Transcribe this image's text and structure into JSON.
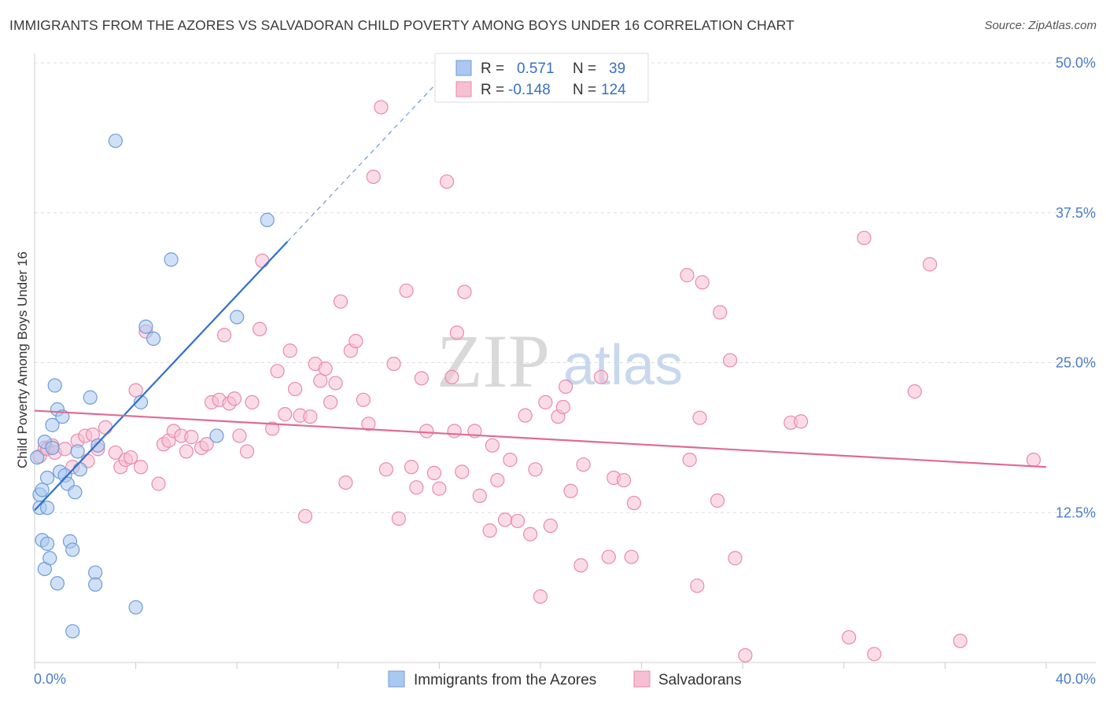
{
  "title": "IMMIGRANTS FROM THE AZORES VS SALVADORAN CHILD POVERTY AMONG BOYS UNDER 16 CORRELATION CHART",
  "source": "Source: ZipAtlas.com",
  "watermark": {
    "zip": "ZIP",
    "atlas": "atlas"
  },
  "colors": {
    "blue_fill": "#aac8f0",
    "blue_stroke": "#6f9bd8",
    "blue_line": "#2f6fd0",
    "pink_fill": "#f7bfd2",
    "pink_stroke": "#e88aab",
    "pink_line": "#e06a94",
    "grid": "#dddddd",
    "tick_text": "#4a7cc9"
  },
  "legend": {
    "rows": [
      {
        "r_label": "R =",
        "r_value": "0.571",
        "n_label": "N =",
        "n_value": "39"
      },
      {
        "r_label": "R =",
        "r_value": "-0.148",
        "n_label": "N =",
        "n_value": "124"
      }
    ]
  },
  "chart_data": {
    "type": "scatter",
    "title": "IMMIGRANTS FROM THE AZORES VS SALVADORAN CHILD POVERTY AMONG BOYS UNDER 16 CORRELATION CHART",
    "xlabel": "",
    "ylabel": "Child Poverty Among Boys Under 16",
    "xlim": [
      0,
      40
    ],
    "ylim": [
      0,
      50
    ],
    "x_tick_labels": [
      "0.0%",
      "40.0%"
    ],
    "y_ticks": [
      12.5,
      25.0,
      37.5,
      50.0
    ],
    "y_tick_labels": [
      "12.5%",
      "25.0%",
      "37.5%",
      "50.0%"
    ],
    "grid": true,
    "legend_position": "top-center",
    "series": [
      {
        "name": "Immigrants from the Azores",
        "color": "#aac8f0",
        "r": 0.571,
        "n": 39,
        "trend": {
          "x_start": 0,
          "y_start": 12.7,
          "x_end": 10,
          "y_end": 35.1,
          "dashed_to_x": 16.5
        },
        "points": [
          [
            0.1,
            17.1
          ],
          [
            0.2,
            14.0
          ],
          [
            0.2,
            12.9
          ],
          [
            0.3,
            10.2
          ],
          [
            0.3,
            14.4
          ],
          [
            0.4,
            18.4
          ],
          [
            0.4,
            7.8
          ],
          [
            0.5,
            9.9
          ],
          [
            0.5,
            12.9
          ],
          [
            0.5,
            15.4
          ],
          [
            0.6,
            8.7
          ],
          [
            0.7,
            19.8
          ],
          [
            0.7,
            17.9
          ],
          [
            0.8,
            23.1
          ],
          [
            0.9,
            21.1
          ],
          [
            0.9,
            6.6
          ],
          [
            1.0,
            15.9
          ],
          [
            1.1,
            20.5
          ],
          [
            1.2,
            15.6
          ],
          [
            1.3,
            14.9
          ],
          [
            1.4,
            10.1
          ],
          [
            1.5,
            9.4
          ],
          [
            1.5,
            2.6
          ],
          [
            1.6,
            14.2
          ],
          [
            1.7,
            17.6
          ],
          [
            1.8,
            16.1
          ],
          [
            2.2,
            22.1
          ],
          [
            2.4,
            7.5
          ],
          [
            2.4,
            6.5
          ],
          [
            2.5,
            18.1
          ],
          [
            3.2,
            43.5
          ],
          [
            4.0,
            4.6
          ],
          [
            4.2,
            21.7
          ],
          [
            4.4,
            28.0
          ],
          [
            4.7,
            27.0
          ],
          [
            5.4,
            33.6
          ],
          [
            7.2,
            18.9
          ],
          [
            8.0,
            28.8
          ],
          [
            9.2,
            36.9
          ]
        ]
      },
      {
        "name": "Salvadorans",
        "color": "#f7bfd2",
        "r": -0.148,
        "n": 124,
        "trend": {
          "x_start": 0,
          "y_start": 21.0,
          "x_end": 40,
          "y_end": 16.3
        },
        "points": [
          [
            0.2,
            17.2
          ],
          [
            0.4,
            17.9
          ],
          [
            0.5,
            17.8
          ],
          [
            0.7,
            18.1
          ],
          [
            0.8,
            17.5
          ],
          [
            1.2,
            17.8
          ],
          [
            1.5,
            16.3
          ],
          [
            1.7,
            18.5
          ],
          [
            2.0,
            18.9
          ],
          [
            2.1,
            16.8
          ],
          [
            2.3,
            19.0
          ],
          [
            2.5,
            17.8
          ],
          [
            2.8,
            19.6
          ],
          [
            3.2,
            17.5
          ],
          [
            3.4,
            16.3
          ],
          [
            3.6,
            16.9
          ],
          [
            3.8,
            17.1
          ],
          [
            4.0,
            22.7
          ],
          [
            4.2,
            16.3
          ],
          [
            4.4,
            27.6
          ],
          [
            4.9,
            14.9
          ],
          [
            5.1,
            18.2
          ],
          [
            5.3,
            18.5
          ],
          [
            5.5,
            19.3
          ],
          [
            5.8,
            18.9
          ],
          [
            6.0,
            17.6
          ],
          [
            6.2,
            18.8
          ],
          [
            6.6,
            17.9
          ],
          [
            6.8,
            18.2
          ],
          [
            7.0,
            21.7
          ],
          [
            7.3,
            21.9
          ],
          [
            7.5,
            27.3
          ],
          [
            7.7,
            21.6
          ],
          [
            7.9,
            22.0
          ],
          [
            8.1,
            18.9
          ],
          [
            8.4,
            17.6
          ],
          [
            8.6,
            21.7
          ],
          [
            8.9,
            27.8
          ],
          [
            9.0,
            33.5
          ],
          [
            9.4,
            19.5
          ],
          [
            9.6,
            24.3
          ],
          [
            9.9,
            20.7
          ],
          [
            10.1,
            26.0
          ],
          [
            10.3,
            22.8
          ],
          [
            10.5,
            20.6
          ],
          [
            10.7,
            12.2
          ],
          [
            10.9,
            20.5
          ],
          [
            11.1,
            24.9
          ],
          [
            11.3,
            23.5
          ],
          [
            11.5,
            24.5
          ],
          [
            11.7,
            21.7
          ],
          [
            11.9,
            23.3
          ],
          [
            12.1,
            30.1
          ],
          [
            12.3,
            15.0
          ],
          [
            12.5,
            26.0
          ],
          [
            12.7,
            26.8
          ],
          [
            13.0,
            21.9
          ],
          [
            13.2,
            19.9
          ],
          [
            13.4,
            40.5
          ],
          [
            13.7,
            46.3
          ],
          [
            13.9,
            16.1
          ],
          [
            14.2,
            24.9
          ],
          [
            14.4,
            12.0
          ],
          [
            14.7,
            31.0
          ],
          [
            14.9,
            16.3
          ],
          [
            15.1,
            14.6
          ],
          [
            15.3,
            23.7
          ],
          [
            15.5,
            19.3
          ],
          [
            15.8,
            15.8
          ],
          [
            16.0,
            14.5
          ],
          [
            16.3,
            40.1
          ],
          [
            16.5,
            23.8
          ],
          [
            16.6,
            19.3
          ],
          [
            16.7,
            27.5
          ],
          [
            16.9,
            15.9
          ],
          [
            17.0,
            30.9
          ],
          [
            17.4,
            19.3
          ],
          [
            17.6,
            13.9
          ],
          [
            18.0,
            11.0
          ],
          [
            18.1,
            18.1
          ],
          [
            18.3,
            15.2
          ],
          [
            18.6,
            11.9
          ],
          [
            18.8,
            16.9
          ],
          [
            19.1,
            11.8
          ],
          [
            19.4,
            20.6
          ],
          [
            19.6,
            10.7
          ],
          [
            19.8,
            16.1
          ],
          [
            20.0,
            5.5
          ],
          [
            20.2,
            21.7
          ],
          [
            20.4,
            11.4
          ],
          [
            20.7,
            20.5
          ],
          [
            20.9,
            21.3
          ],
          [
            21.0,
            23.0
          ],
          [
            21.2,
            14.3
          ],
          [
            21.6,
            8.1
          ],
          [
            21.7,
            16.5
          ],
          [
            22.4,
            23.8
          ],
          [
            22.7,
            8.8
          ],
          [
            22.9,
            15.4
          ],
          [
            23.3,
            15.2
          ],
          [
            23.6,
            8.8
          ],
          [
            23.7,
            13.3
          ],
          [
            25.8,
            32.3
          ],
          [
            25.9,
            16.9
          ],
          [
            26.2,
            6.4
          ],
          [
            26.3,
            20.4
          ],
          [
            26.4,
            31.7
          ],
          [
            27.0,
            13.5
          ],
          [
            27.1,
            29.2
          ],
          [
            27.5,
            25.2
          ],
          [
            27.7,
            8.7
          ],
          [
            28.1,
            0.6
          ],
          [
            29.9,
            20.0
          ],
          [
            30.3,
            20.1
          ],
          [
            32.2,
            2.1
          ],
          [
            32.8,
            35.4
          ],
          [
            33.2,
            0.7
          ],
          [
            34.8,
            22.6
          ],
          [
            35.4,
            33.2
          ],
          [
            36.6,
            1.8
          ],
          [
            39.5,
            16.9
          ]
        ]
      }
    ]
  }
}
